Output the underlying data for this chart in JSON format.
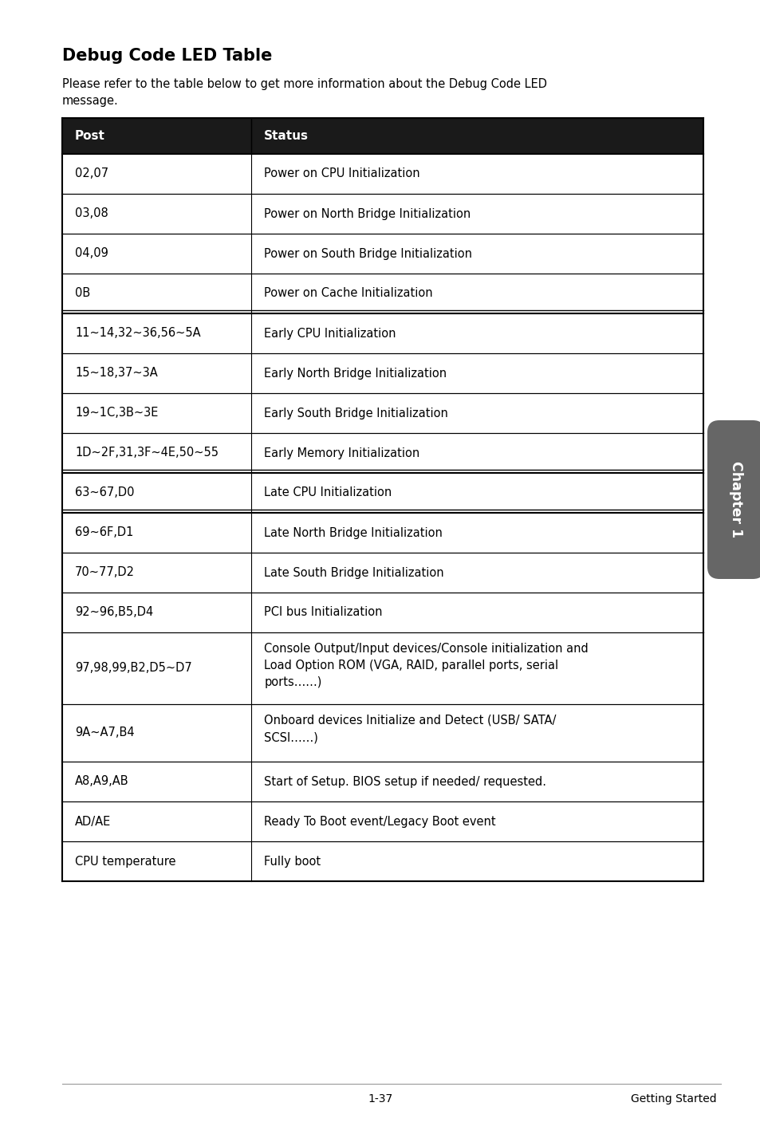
{
  "title": "Debug Code LED Table",
  "subtitle": "Please refer to the table below to get more information about the Debug Code LED\nmessage.",
  "header": [
    "Post",
    "Status"
  ],
  "rows": [
    [
      "02,07",
      "Power on CPU Initialization"
    ],
    [
      "03,08",
      "Power on North Bridge Initialization"
    ],
    [
      "04,09",
      "Power on South Bridge Initialization"
    ],
    [
      "0B",
      "Power on Cache Initialization"
    ],
    [
      "11~14,32~36,56~5A",
      "Early CPU Initialization"
    ],
    [
      "15~18,37~3A",
      "Early North Bridge Initialization"
    ],
    [
      "19~1C,3B~3E",
      "Early South Bridge Initialization"
    ],
    [
      "1D~2F,31,3F~4E,50~55",
      "Early Memory Initialization"
    ],
    [
      "63~67,D0",
      "Late CPU Initialization"
    ],
    [
      "69~6F,D1",
      "Late North Bridge Initialization"
    ],
    [
      "70~77,D2",
      "Late South Bridge Initialization"
    ],
    [
      "92~96,B5,D4",
      "PCI bus Initialization"
    ],
    [
      "97,98,99,B2,D5~D7",
      "Console Output/Input devices/Console initialization and\nLoad Option ROM (VGA, RAID, parallel ports, serial\nports……)"
    ],
    [
      "9A~A7,B4",
      "Onboard devices Initialize and Detect (USB/ SATA/\nSCSI……)"
    ],
    [
      "A8,A9,AB",
      "Start of Setup. BIOS setup if needed/ requested."
    ],
    [
      "AD/AE",
      "Ready To Boot event/Legacy Boot event"
    ],
    [
      "CPU temperature",
      "Fully boot"
    ]
  ],
  "double_border_after": [
    3,
    7,
    8
  ],
  "bg_color": "#ffffff",
  "header_bg": "#1a1a1a",
  "header_fg": "#ffffff",
  "border_color": "#000000",
  "text_color": "#000000",
  "chapter_tab_text": "Chapter 1",
  "chapter_tab_bg": "#666666",
  "footer_left": "1-37",
  "footer_right": "Getting Started",
  "col_split": 0.295,
  "title_fontsize": 15,
  "body_fontsize": 10.5,
  "header_fontsize": 11
}
